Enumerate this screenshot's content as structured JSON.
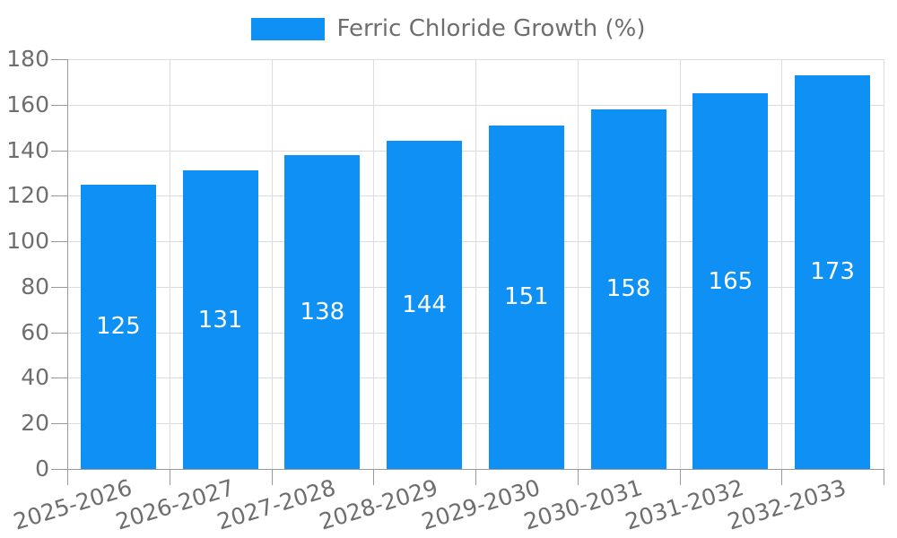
{
  "legend": {
    "label": "Ferric Chloride Growth (%)"
  },
  "chart_data": {
    "type": "bar",
    "title": "",
    "legend_entries": [
      "Ferric Chloride Growth (%)"
    ],
    "legend_position": "top-center",
    "categories": [
      "2025-2026",
      "2026-2027",
      "2027-2028",
      "2028-2029",
      "2029-2030",
      "2030-2031",
      "2031-2032",
      "2032-2033"
    ],
    "series": [
      {
        "name": "Ferric Chloride Growth (%)",
        "values": [
          125,
          131,
          138,
          144,
          151,
          158,
          165,
          173
        ]
      }
    ],
    "value_labels": [
      "125",
      "131",
      "138",
      "144",
      "151",
      "158",
      "165",
      "173"
    ],
    "xlabel": "",
    "ylabel": "",
    "ylim": [
      0,
      180
    ],
    "ytick_step": 20,
    "grid": "on",
    "bar_color": "#0e90f5",
    "value_label_color": "#ffffff",
    "axis_text_color": "#6e6e6e",
    "axis_line_color": "#999999",
    "gridline_color": "#dcdcdc"
  }
}
